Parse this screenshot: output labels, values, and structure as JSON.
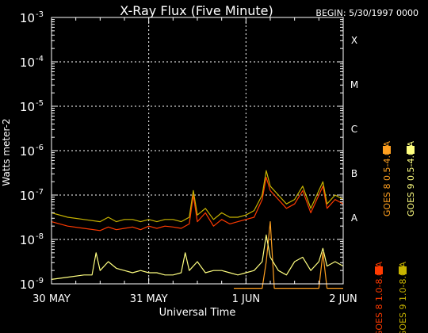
{
  "chart_data": {
    "type": "line",
    "title": "X-Ray Flux (Five Minute)",
    "begin_label": "BEGIN: 5/30/1997 0000",
    "xlabel": "Universal Time",
    "ylabel": "Watts meter-2",
    "x_unit": "hours since begin",
    "xlim": [
      0,
      72
    ],
    "ylog": true,
    "ylim_exp": [
      -9,
      -3
    ],
    "y_ticks": [
      {
        "exp": -9,
        "base": "10",
        "sup": "-9"
      },
      {
        "exp": -8,
        "base": "10",
        "sup": "-8"
      },
      {
        "exp": -7,
        "base": "10",
        "sup": "-7"
      },
      {
        "exp": -6,
        "base": "10",
        "sup": "-6"
      },
      {
        "exp": -5,
        "base": "10",
        "sup": "-5"
      },
      {
        "exp": -4,
        "base": "10",
        "sup": "-4"
      },
      {
        "exp": -3,
        "base": "10",
        "sup": "-3"
      }
    ],
    "x_ticks": [
      {
        "x": 0,
        "label": "30 MAY"
      },
      {
        "x": 24,
        "label": "31 MAY"
      },
      {
        "x": 48,
        "label": "1 JUN"
      },
      {
        "x": 72,
        "label": "2 JUN"
      }
    ],
    "vgrid_x": [
      24,
      48
    ],
    "flare_classes": [
      {
        "label": "A",
        "exp": -7.5
      },
      {
        "label": "B",
        "exp": -6.5
      },
      {
        "label": "C",
        "exp": -5.5
      },
      {
        "label": "M",
        "exp": -4.5
      },
      {
        "label": "X",
        "exp": -3.5
      }
    ],
    "legend": [
      {
        "label": "GOES 8 1.0-8.0 A",
        "color": "#ff3a00"
      },
      {
        "label": "GOES 8 0.5-4.0 A",
        "color": "#ffa020"
      },
      {
        "label": "GOES 9 1.0-8.0 A",
        "color": "#c8b400"
      },
      {
        "label": "GOES 9 0.5-4.0 A",
        "color": "#ffff80"
      }
    ],
    "series": [
      {
        "name": "GOES 8 1.0-8.0 A",
        "color": "#ff3a00",
        "x": [
          0,
          4,
          8,
          12,
          14,
          16,
          18,
          20,
          22,
          24,
          26,
          28,
          30,
          32,
          34,
          35,
          36,
          38,
          40,
          42,
          44,
          46,
          48,
          50,
          52,
          53,
          54,
          56,
          58,
          60,
          62,
          64,
          66,
          67,
          68,
          70,
          72
        ],
        "y": [
          -7.6,
          -7.7,
          -7.75,
          -7.8,
          -7.72,
          -7.78,
          -7.75,
          -7.72,
          -7.78,
          -7.7,
          -7.75,
          -7.7,
          -7.72,
          -7.75,
          -7.65,
          -7.0,
          -7.6,
          -7.4,
          -7.7,
          -7.55,
          -7.65,
          -7.6,
          -7.55,
          -7.5,
          -7.1,
          -6.6,
          -6.9,
          -7.1,
          -7.3,
          -7.2,
          -6.9,
          -7.4,
          -7.0,
          -6.8,
          -7.3,
          -7.1,
          -7.2
        ]
      },
      {
        "name": "GOES 8 0.5-4.0 A",
        "color": "#ffa020",
        "x": [
          45,
          48,
          50,
          52,
          53,
          54,
          55,
          56,
          57,
          58,
          60,
          62,
          64,
          66,
          67,
          68,
          70,
          72
        ],
        "y": [
          -9.1,
          -9.1,
          -9.1,
          -9.1,
          -8.5,
          -7.6,
          -9.1,
          -9.1,
          -9.1,
          -9.1,
          -9.1,
          -9.1,
          -9.1,
          -9.1,
          -8.3,
          -9.1,
          -9.1,
          -9.1
        ]
      },
      {
        "name": "GOES 9 1.0-8.0 A",
        "color": "#c8b400",
        "x": [
          0,
          4,
          8,
          12,
          14,
          16,
          18,
          20,
          22,
          24,
          26,
          28,
          30,
          32,
          34,
          35,
          36,
          38,
          40,
          42,
          44,
          46,
          48,
          50,
          52,
          53,
          54,
          56,
          58,
          60,
          62,
          64,
          66,
          67,
          68,
          70,
          72
        ],
        "y": [
          -7.4,
          -7.5,
          -7.55,
          -7.6,
          -7.5,
          -7.6,
          -7.55,
          -7.55,
          -7.6,
          -7.55,
          -7.6,
          -7.55,
          -7.55,
          -7.6,
          -7.5,
          -6.9,
          -7.45,
          -7.3,
          -7.55,
          -7.4,
          -7.5,
          -7.5,
          -7.45,
          -7.35,
          -7.0,
          -6.45,
          -6.8,
          -7.0,
          -7.2,
          -7.1,
          -6.8,
          -7.3,
          -6.9,
          -6.7,
          -7.2,
          -7.0,
          -7.1
        ]
      },
      {
        "name": "GOES 9 0.5-4.0 A",
        "color": "#ffff80",
        "x": [
          0,
          4,
          8,
          10,
          11,
          12,
          14,
          16,
          18,
          20,
          22,
          24,
          26,
          28,
          30,
          32,
          33,
          34,
          36,
          38,
          40,
          42,
          44,
          46,
          48,
          50,
          52,
          53,
          54,
          56,
          58,
          60,
          62,
          64,
          66,
          67,
          68,
          70,
          72
        ],
        "y": [
          -8.9,
          -8.85,
          -8.8,
          -8.8,
          -8.3,
          -8.7,
          -8.5,
          -8.65,
          -8.7,
          -8.75,
          -8.7,
          -8.75,
          -8.75,
          -8.8,
          -8.8,
          -8.75,
          -8.3,
          -8.7,
          -8.5,
          -8.75,
          -8.7,
          -8.7,
          -8.75,
          -8.8,
          -8.75,
          -8.7,
          -8.5,
          -7.9,
          -8.4,
          -8.7,
          -8.8,
          -8.5,
          -8.4,
          -8.7,
          -8.5,
          -8.2,
          -8.6,
          -8.5,
          -8.6
        ]
      }
    ]
  }
}
